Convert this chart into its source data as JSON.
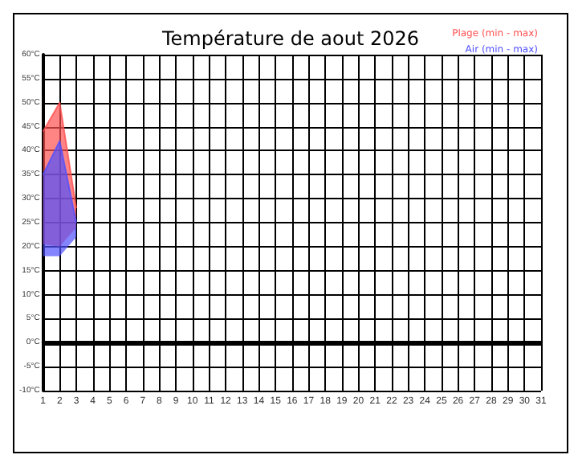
{
  "chart_data": {
    "type": "line",
    "title": "Température de aout 2026",
    "x": [
      1,
      2,
      3
    ],
    "series": [
      {
        "name": "Plage (min - max)",
        "color": "#ff5050",
        "values": [
          44,
          50,
          28
        ],
        "upper": [
          44,
          50,
          28
        ],
        "lower": [
          20.5,
          20,
          24
        ]
      },
      {
        "name": "Air (min - max)",
        "color": "#5050ff",
        "values": [
          35,
          42,
          25
        ],
        "upper": [
          35,
          42,
          25
        ],
        "lower": [
          18,
          18,
          22
        ]
      }
    ],
    "xlim": [
      1,
      31
    ],
    "xticks": [
      1,
      2,
      3,
      4,
      5,
      6,
      7,
      8,
      9,
      10,
      11,
      12,
      13,
      14,
      15,
      16,
      17,
      18,
      19,
      20,
      21,
      22,
      23,
      24,
      25,
      26,
      27,
      28,
      29,
      30,
      31
    ],
    "ylim": [
      -10,
      60
    ],
    "yticks": [
      {
        "value": -10,
        "label": "-10°C"
      },
      {
        "value": -5,
        "label": "-5°C"
      },
      {
        "value": 0,
        "label": "0°C"
      },
      {
        "value": 5,
        "label": "5°C"
      },
      {
        "value": 10,
        "label": "10°C"
      },
      {
        "value": 15,
        "label": "15°C"
      },
      {
        "value": 20,
        "label": "20°C"
      },
      {
        "value": 25,
        "label": "25°C"
      },
      {
        "value": 30,
        "label": "30°C"
      },
      {
        "value": 35,
        "label": "35°C"
      },
      {
        "value": 40,
        "label": "40°C"
      },
      {
        "value": 45,
        "label": "45°C"
      },
      {
        "value": 50,
        "label": "50°C"
      },
      {
        "value": 55,
        "label": "55°C"
      },
      {
        "value": 60,
        "label": "60°C"
      }
    ],
    "ref_lines": [
      {
        "axis": "y",
        "value": 0,
        "color": "#000000"
      }
    ],
    "grid": true,
    "legend": "top right"
  }
}
